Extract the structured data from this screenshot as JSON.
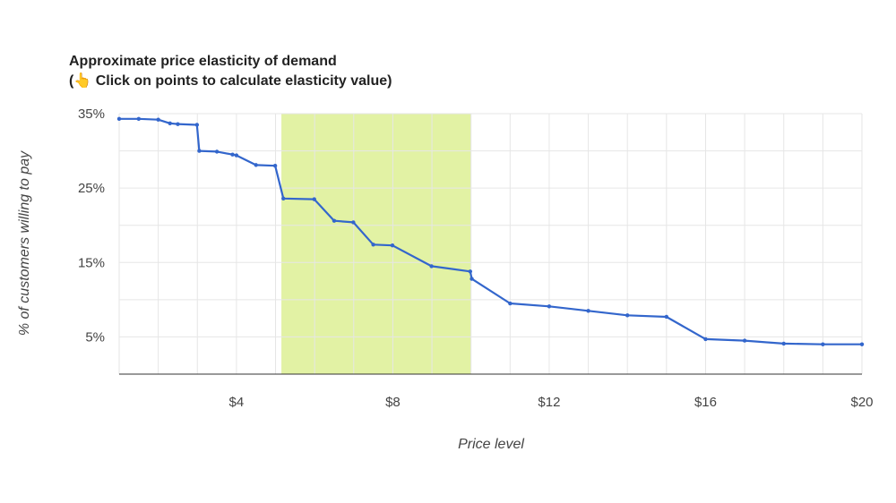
{
  "chart_title": {
    "line1": "Approximate price elasticity of demand",
    "line2_prefix": "(",
    "line2_icon": "pointing-hand-icon",
    "line2_icon_glyph": "👆",
    "line2_text": " Click on points to calculate elasticity value)"
  },
  "colors": {
    "line": "#3366cc",
    "highlight": "#e2f2a4",
    "grid": "#e6e6e6",
    "axis": "#333333"
  },
  "chart_data": {
    "type": "line",
    "title": "Approximate price elasticity of demand",
    "xlabel": "Price level",
    "ylabel": "% of customers willing to pay",
    "xlim": [
      1,
      20
    ],
    "ylim": [
      0,
      35
    ],
    "x_ticks": [
      {
        "value": 4,
        "label": "$4"
      },
      {
        "value": 8,
        "label": "$8"
      },
      {
        "value": 12,
        "label": "$12"
      },
      {
        "value": 16,
        "label": "$16"
      },
      {
        "value": 20,
        "label": "$20"
      }
    ],
    "y_ticks": [
      {
        "value": 35,
        "label": "35%"
      },
      {
        "value": 25,
        "label": "25%"
      },
      {
        "value": 15,
        "label": "15%"
      },
      {
        "value": 5,
        "label": "5%"
      }
    ],
    "highlight_range": [
      5.15,
      10
    ],
    "grid": true,
    "legend": "none",
    "series": [
      {
        "x": [
          1,
          1.5,
          2,
          2.3,
          2.5,
          2.99,
          3.05,
          3.5,
          3.9,
          4,
          4.5,
          4.99,
          5.2,
          5.99,
          6.5,
          6.99,
          7.5,
          7.99,
          8.99,
          9.98,
          10.02,
          11,
          12,
          13,
          14,
          15,
          16,
          17,
          18,
          19,
          20
        ],
        "y": [
          34.3,
          34.3,
          34.2,
          33.7,
          33.6,
          33.5,
          30,
          29.9,
          29.5,
          29.4,
          28.1,
          28,
          23.6,
          23.5,
          20.6,
          20.4,
          17.4,
          17.3,
          14.5,
          13.8,
          12.8,
          9.5,
          9.1,
          8.5,
          7.9,
          7.7,
          4.7,
          4.5,
          4.1,
          4,
          4
        ]
      }
    ]
  }
}
